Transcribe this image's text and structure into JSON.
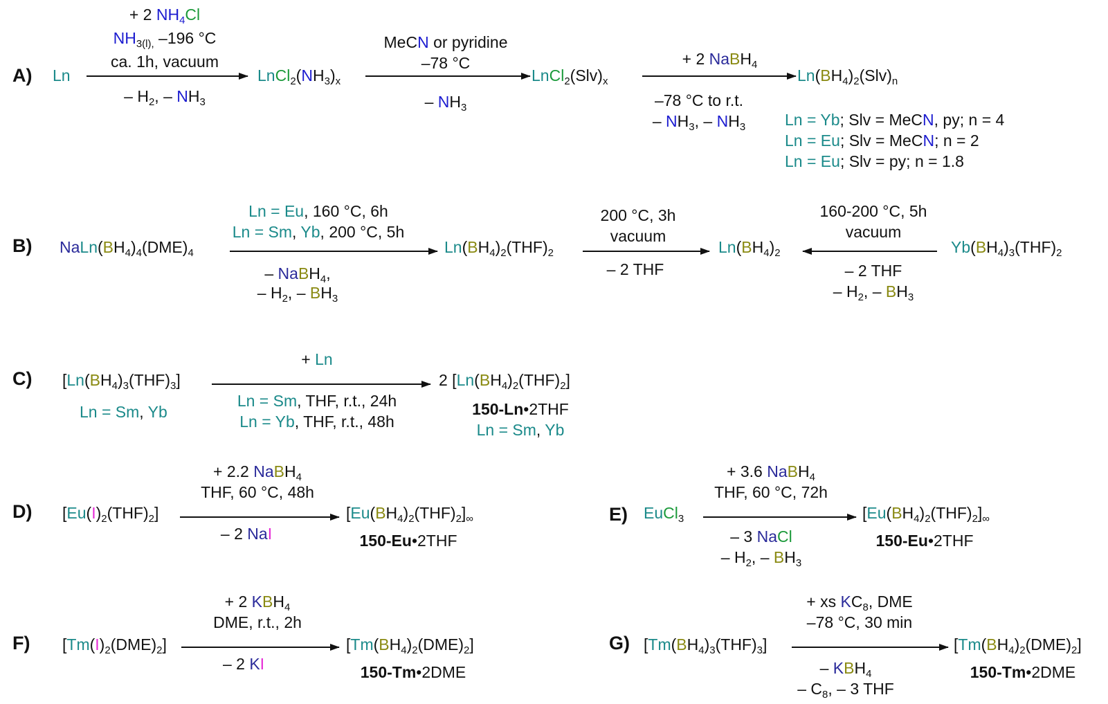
{
  "colors": {
    "lanthanide": "#1b8a8a",
    "nitrogen": "#1c1cd0",
    "chlorine": "#1b9a3a",
    "boron": "#8a8a12",
    "iodine": "#e62ad6",
    "alkali": "#2a2a9a"
  },
  "labels": {
    "A": "A)",
    "B": "B)",
    "C": "C)",
    "D": "D)",
    "E": "E)",
    "F": "F)",
    "G": "G)"
  },
  "schemeA": {
    "above1_line1": "+ 2 NH4Cl",
    "above1_line2": "NH3(l), –196 °C",
    "above1_line3": "ca. 1h, vacuum",
    "below1": "– H2, – NH3",
    "above2_line1": "MeCN or pyridine",
    "above2_line2": "–78 °C",
    "below2": "– NH3",
    "above3": "+ 2 NaBH4",
    "below3_line1": "–78 °C to r.t.",
    "below3_line2": "– NH3, – NH3",
    "start": "Ln",
    "int1": "LnCl2(NH3)x",
    "int2": "LnCl2(Slv)x",
    "product": "Ln(BH4)2(Slv)n",
    "cond1": "Ln = Yb; Slv = MeCN, py; n = 4",
    "cond2": "Ln = Eu; Slv = MeCN; n = 2",
    "cond3": "Ln = Eu; Slv = py; n = 1.8"
  },
  "schemeB": {
    "start": "NaLn(BH4)4(DME)4",
    "above1_line1": "Ln = Eu, 160 °C, 6h",
    "above1_line2": "Ln = Sm, Yb, 200 °C, 5h",
    "below1_line1": "– NaBH4,",
    "below1_line2": "– H2, – BH3",
    "int1": "Ln(BH4)2(THF)2",
    "above2_line1": "200 °C, 3h",
    "above2_line2": "vacuum",
    "below2": "– 2 THF",
    "product": "Ln(BH4)2",
    "above3_line1": "160-200 °C, 5h",
    "above3_line2": "vacuum",
    "below3_line1": "– 2 THF",
    "below3_line2": "– H2, – BH3",
    "right_start": "Yb(BH4)3(THF)2"
  },
  "schemeC": {
    "start": "[Ln(BH4)3(THF)3]",
    "start_cond": "Ln = Sm, Yb",
    "above": "+ Ln",
    "below_line1": "Ln = Sm, THF, r.t., 24h",
    "below_line2": "Ln = Yb, THF, r.t., 48h",
    "product": "2 [Ln(BH4)2(THF)2]",
    "product_name": "150-Ln•2THF",
    "product_cond": "Ln = Sm, Yb"
  },
  "schemeD": {
    "start": "[Eu(I)2(THF)2]",
    "above_line1": "+ 2.2 NaBH4",
    "above_line2": "THF, 60 °C, 48h",
    "below": "– 2 NaI",
    "product": "[Eu(BH4)2(THF)2]∞",
    "product_name": "150-Eu•2THF"
  },
  "schemeE": {
    "start": "EuCl3",
    "above_line1": "+ 3.6 NaBH4",
    "above_line2": "THF, 60 °C, 72h",
    "below_line1": "– 3 NaCl",
    "below_line2": "– H2, – BH3",
    "product": "[Eu(BH4)2(THF)2]∞",
    "product_name": "150-Eu•2THF"
  },
  "schemeF": {
    "start": "[Tm(I)2(DME)2]",
    "above_line1": "+ 2 KBH4",
    "above_line2": "DME, r.t., 2h",
    "below": "– 2 KI",
    "product": "[Tm(BH4)2(DME)2]",
    "product_name": "150-Tm•2DME"
  },
  "schemeG": {
    "start": "[Tm(BH4)3(THF)3]",
    "above_line1": "+ xs KC8, DME",
    "above_line2": "–78 °C, 30 min",
    "below_line1": "– KBH4",
    "below_line2": "– C8, – 3 THF",
    "product": "[Tm(BH4)2(DME)2]",
    "product_name": "150-Tm•2DME"
  }
}
